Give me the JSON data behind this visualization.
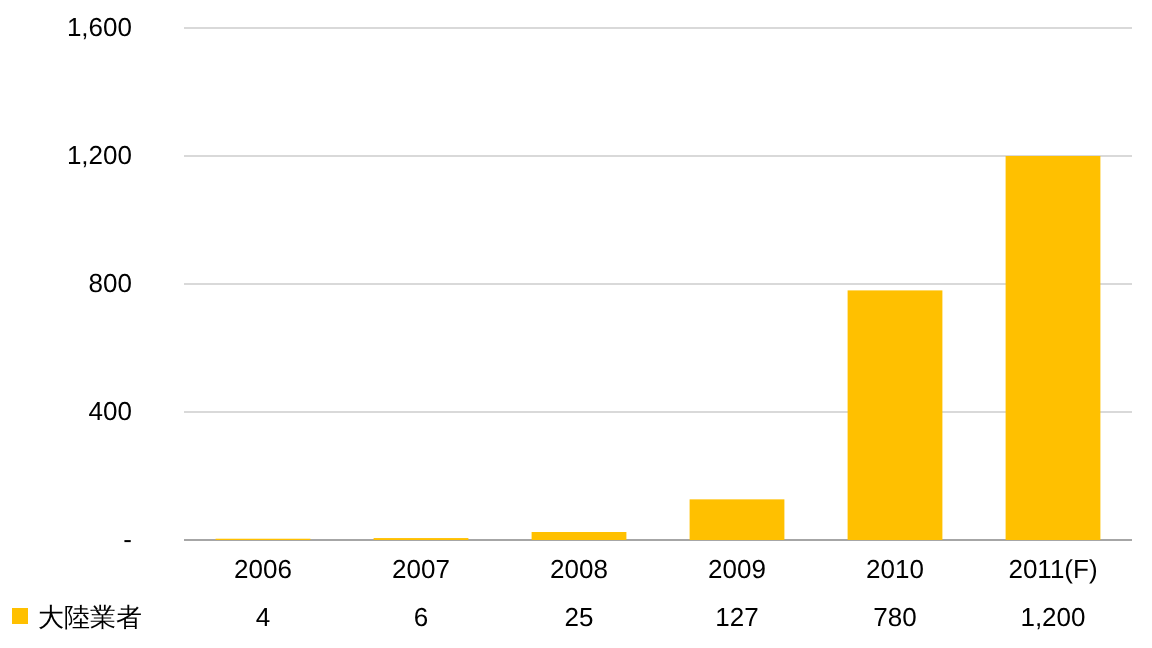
{
  "chart_data": {
    "type": "bar",
    "categories": [
      "2006",
      "2007",
      "2008",
      "2009",
      "2010",
      "2011(F)"
    ],
    "series": [
      {
        "name": "大陸業者",
        "color": "#ffc000",
        "values": [
          4,
          6,
          25,
          127,
          780,
          1200
        ],
        "value_labels": [
          "4",
          "6",
          "25",
          "127",
          "780",
          "1,200"
        ]
      }
    ],
    "ylim": [
      0,
      1600
    ],
    "yticks": [
      {
        "value": 0,
        "label": "-"
      },
      400,
      800,
      {
        "value": 1200,
        "label": "1,200"
      },
      {
        "value": 1600,
        "label": "1,600"
      }
    ],
    "grid": "y",
    "legend": "bottom"
  }
}
